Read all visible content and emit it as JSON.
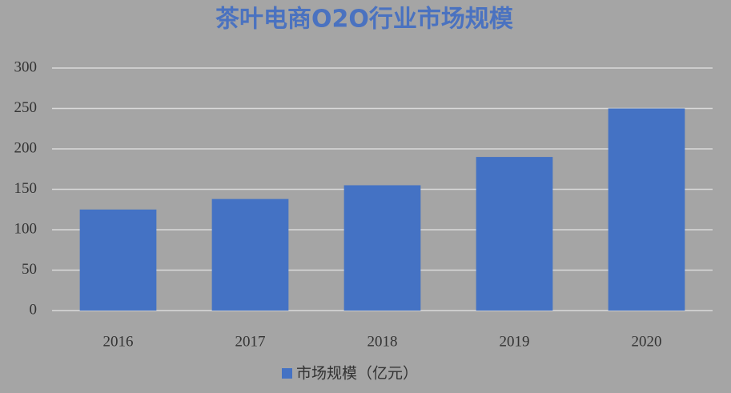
{
  "chart_data": {
    "type": "bar",
    "title": "茶叶电商O2O行业市场规模",
    "categories": [
      "2016",
      "2017",
      "2018",
      "2019",
      "2020"
    ],
    "series": [
      {
        "name": "市场规模（亿元）",
        "color": "#4472c4",
        "values": [
          125,
          138,
          155,
          190,
          250
        ]
      }
    ],
    "ylim": [
      0,
      300
    ],
    "yticks": [
      0,
      50,
      100,
      150,
      200,
      250,
      300
    ],
    "grid": true,
    "legend": "bottom"
  }
}
